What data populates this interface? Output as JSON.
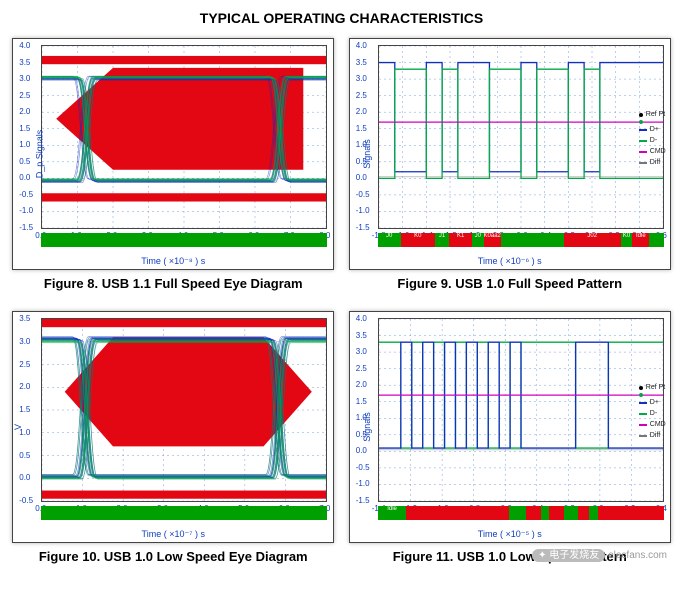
{
  "title": "TYPICAL OPERATING CHARACTERISTICS",
  "watermark": "elecfans.com",
  "watermark_cn": "电子发烧友",
  "colors": {
    "mask": "#e30613",
    "grid": "#7aa0d8",
    "trace_dplus": "#1030c0",
    "trace_dminus": "#00aa44",
    "trace_cmd": "#d000c0",
    "trace_diff": "#777777",
    "status_green": "#00a000",
    "status_red": "#e30613",
    "axis_text": "#1040c0",
    "plot_bg": "#ffffff"
  },
  "legend_items": [
    {
      "label": "Ref Pt",
      "type": "dot",
      "color": "#000000"
    },
    {
      "label": "",
      "type": "dot",
      "color": "#00aa44"
    },
    {
      "label": "D+",
      "type": "line",
      "color": "#1030c0"
    },
    {
      "label": "D-",
      "type": "line",
      "color": "#00aa44"
    },
    {
      "label": "CMD",
      "type": "line",
      "color": "#d000c0"
    },
    {
      "label": "Diff",
      "type": "line",
      "color": "#777777"
    }
  ],
  "panels": [
    {
      "id": "fig8",
      "caption": "Figure 8. USB 1.1 Full Speed Eye Diagram",
      "xlabel": "Time ( ×10⁻⁸ ) s",
      "ylabel": "D_p Signals",
      "xmin": 0,
      "xmax": 8,
      "xstep": 1,
      "ymin": -1.5,
      "ymax": 4.0,
      "ystep": 0.5,
      "eye_mask": {
        "type": "arrow_left",
        "poly": [
          [
            0.05,
            0.4
          ],
          [
            0.25,
            0.12
          ],
          [
            0.92,
            0.12
          ],
          [
            0.92,
            0.68
          ],
          [
            0.25,
            0.68
          ]
        ]
      },
      "rails": [
        {
          "y": -0.7,
          "h": 0.25
        },
        {
          "y": 3.45,
          "h": 0.25
        }
      ],
      "traces": [
        {
          "color": "#1030c0",
          "thin": true,
          "opacity": 0.55,
          "type": "eye",
          "level_hi": 3.0,
          "level_lo": -0.1,
          "n": 10
        },
        {
          "color": "#00aa44",
          "thin": true,
          "opacity": 0.55,
          "type": "eye",
          "level_hi": 3.05,
          "level_lo": -0.05,
          "n": 8
        }
      ],
      "status_segments": [
        [
          "g",
          1
        ]
      ],
      "legend": false
    },
    {
      "id": "fig9",
      "caption": "Figure 9. USB 1.0 Full Speed Pattern",
      "xlabel": "Time ( ×10⁻⁶ ) s",
      "ylabel": "Signals",
      "xmin": -1.8,
      "xmax": 0.6,
      "xstep": 0.2,
      "ymin": -1.5,
      "ymax": 4.0,
      "ystep": 0.5,
      "traces": [
        {
          "color": "#1030c0",
          "type": "digital",
          "hi": 3.5,
          "lo": 0.2,
          "pattern": [
            1,
            0,
            0,
            1,
            0,
            1,
            1,
            0,
            0,
            1,
            0,
            0,
            1,
            0,
            1,
            1,
            1,
            1
          ]
        },
        {
          "color": "#00aa44",
          "type": "digital",
          "hi": 3.3,
          "lo": 0.0,
          "pattern": [
            0,
            1,
            1,
            0,
            1,
            0,
            0,
            1,
            1,
            0,
            1,
            1,
            0,
            1,
            0,
            0,
            0,
            0
          ]
        },
        {
          "color": "#d000c0",
          "type": "flat",
          "y": 1.7
        },
        {
          "color": "#777777",
          "type": "flat",
          "y": 0.05,
          "opacity": 0.4
        }
      ],
      "status_segments": [
        [
          "g",
          0.08
        ],
        [
          "r",
          0.12
        ],
        [
          "g",
          0.05
        ],
        [
          "r",
          0.08
        ],
        [
          "g",
          0.04
        ],
        [
          "r",
          0.06
        ],
        [
          "g",
          0.22
        ],
        [
          "r",
          0.2
        ],
        [
          "g",
          0.04
        ],
        [
          "r",
          0.06
        ],
        [
          "g",
          0.05
        ]
      ],
      "status_labels": [
        "J0",
        "K0",
        "J1",
        "K1",
        "J0",
        "K0aa2",
        "",
        "J02",
        "K0",
        "Idle"
      ],
      "legend": true
    },
    {
      "id": "fig10",
      "caption": "Figure 10. USB 1.0 Low Speed Eye Diagram",
      "xlabel": "Time ( ×10⁻⁷ ) s",
      "ylabel": "V",
      "xmin": 0,
      "xmax": 7,
      "xstep": 1,
      "ymin": -0.5,
      "ymax": 3.5,
      "ystep": 0.5,
      "eye_mask": {
        "type": "hexagon",
        "poly": [
          [
            0.08,
            0.4
          ],
          [
            0.25,
            0.1
          ],
          [
            0.78,
            0.1
          ],
          [
            0.95,
            0.4
          ],
          [
            0.78,
            0.7
          ],
          [
            0.25,
            0.7
          ]
        ]
      },
      "rails": [
        {
          "y": -0.45,
          "h": 0.18
        },
        {
          "y": 3.32,
          "h": 0.18
        }
      ],
      "traces": [
        {
          "color": "#1030c0",
          "thin": true,
          "opacity": 0.6,
          "type": "eye",
          "level_hi": 3.05,
          "level_lo": 0.02,
          "n": 12
        },
        {
          "color": "#00aa44",
          "thin": true,
          "opacity": 0.5,
          "type": "eye",
          "level_hi": 3.0,
          "level_lo": 0.0,
          "n": 10
        }
      ],
      "status_segments": [
        [
          "g",
          1
        ]
      ],
      "legend": false
    },
    {
      "id": "fig11",
      "caption": "Figure 11. USB 1.0  Low Speed Pattern",
      "xlabel": "Time ( ×10⁻⁵ ) s",
      "ylabel": "Signals",
      "xmin": -1.4,
      "xmax": 0.4,
      "xstep": 0.2,
      "ymin": -1.5,
      "ymax": 4.0,
      "ystep": 0.5,
      "traces": [
        {
          "color": "#00aa44",
          "type": "digital",
          "hi": 3.3,
          "lo": 0.1,
          "pattern": [
            1,
            1,
            0,
            1,
            0,
            1,
            0,
            1,
            0,
            1,
            0,
            1,
            0,
            1,
            1,
            1,
            1,
            1,
            0,
            0,
            0,
            1,
            1,
            1,
            1,
            1
          ]
        },
        {
          "color": "#1030c0",
          "type": "digital",
          "hi": 3.3,
          "lo": 0.1,
          "pattern": [
            0,
            0,
            1,
            0,
            1,
            0,
            1,
            0,
            1,
            0,
            1,
            0,
            1,
            0,
            0,
            0,
            0,
            0,
            1,
            1,
            1,
            0,
            0,
            0,
            0,
            0
          ]
        },
        {
          "color": "#d000c0",
          "type": "flat",
          "y": 1.7
        },
        {
          "color": "#777777",
          "type": "flat",
          "y": 0.05,
          "opacity": 0.4
        }
      ],
      "status_segments": [
        [
          "g",
          0.1
        ],
        [
          "r",
          0.36
        ],
        [
          "g",
          0.06
        ],
        [
          "r",
          0.05
        ],
        [
          "g",
          0.03
        ],
        [
          "r",
          0.05
        ],
        [
          "g",
          0.05
        ],
        [
          "r",
          0.04
        ],
        [
          "g",
          0.03
        ],
        [
          "r",
          0.23
        ]
      ],
      "status_labels": [
        "Idle",
        "",
        "",
        "",
        "",
        "",
        "",
        "",
        "",
        ""
      ],
      "legend": true
    }
  ]
}
